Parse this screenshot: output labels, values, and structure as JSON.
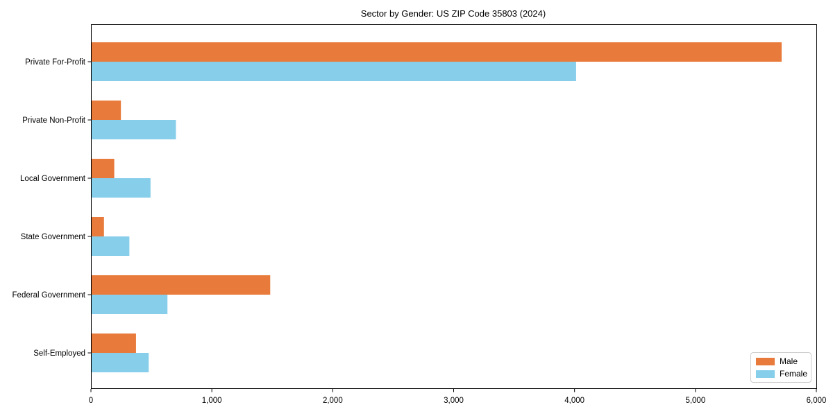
{
  "chart_data": {
    "type": "bar",
    "orientation": "horizontal",
    "title": "Sector by Gender: US ZIP Code 35803 (2024)",
    "categories": [
      "Private For-Profit",
      "Private Non-Profit",
      "Local Government",
      "State Government",
      "Federal Government",
      "Self-Employed"
    ],
    "series": [
      {
        "name": "Male",
        "color": "#e87b3c",
        "values": [
          5710,
          245,
          190,
          105,
          1480,
          370
        ]
      },
      {
        "name": "Female",
        "color": "#87ceeb",
        "values": [
          4010,
          700,
          490,
          315,
          630,
          475
        ]
      }
    ],
    "xlabel": "",
    "ylabel": "",
    "xlim": [
      0,
      6000
    ],
    "xticks": [
      0,
      1000,
      2000,
      3000,
      4000,
      5000,
      6000
    ],
    "xtick_labels": [
      "0",
      "1,000",
      "2,000",
      "3,000",
      "4,000",
      "5,000",
      "6,000"
    ],
    "grid": false,
    "legend": {
      "position": "lower right"
    }
  },
  "colors": {
    "axis": "#000000",
    "text": "#000000",
    "background": "#ffffff",
    "legend_border": "#cccccc"
  }
}
